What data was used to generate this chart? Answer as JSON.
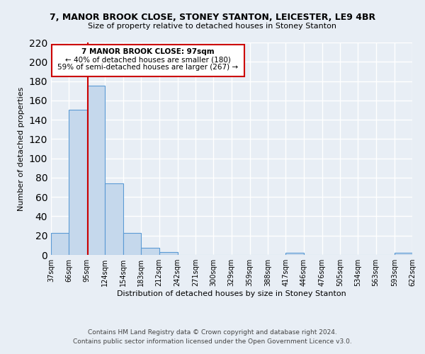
{
  "title": "7, MANOR BROOK CLOSE, STONEY STANTON, LEICESTER, LE9 4BR",
  "subtitle": "Size of property relative to detached houses in Stoney Stanton",
  "xlabel": "Distribution of detached houses by size in Stoney Stanton",
  "ylabel": "Number of detached properties",
  "bar_color": "#c5d8ec",
  "bar_edge_color": "#5b9bd5",
  "background_color": "#e8eef5",
  "grid_color": "#ffffff",
  "annotation_box_color": "#cc0000",
  "annotation_line1": "7 MANOR BROOK CLOSE: 97sqm",
  "annotation_line2": "← 40% of detached houses are smaller (180)",
  "annotation_line3": "59% of semi-detached houses are larger (267) →",
  "property_line_x": 97,
  "bin_edges": [
    37,
    66,
    95,
    124,
    154,
    183,
    212,
    242,
    271,
    300,
    329,
    359,
    388,
    417,
    446,
    476,
    505,
    534,
    563,
    593,
    622
  ],
  "bin_heights": [
    23,
    150,
    175,
    74,
    23,
    7,
    3,
    0,
    0,
    0,
    0,
    0,
    0,
    2,
    0,
    0,
    0,
    0,
    0,
    2
  ],
  "tick_labels": [
    "37sqm",
    "66sqm",
    "95sqm",
    "124sqm",
    "154sqm",
    "183sqm",
    "212sqm",
    "242sqm",
    "271sqm",
    "300sqm",
    "329sqm",
    "359sqm",
    "388sqm",
    "417sqm",
    "446sqm",
    "476sqm",
    "505sqm",
    "534sqm",
    "563sqm",
    "593sqm",
    "622sqm"
  ],
  "ylim": [
    0,
    220
  ],
  "yticks": [
    0,
    20,
    40,
    60,
    80,
    100,
    120,
    140,
    160,
    180,
    200,
    220
  ],
  "footer_line1": "Contains HM Land Registry data © Crown copyright and database right 2024.",
  "footer_line2": "Contains public sector information licensed under the Open Government Licence v3.0."
}
